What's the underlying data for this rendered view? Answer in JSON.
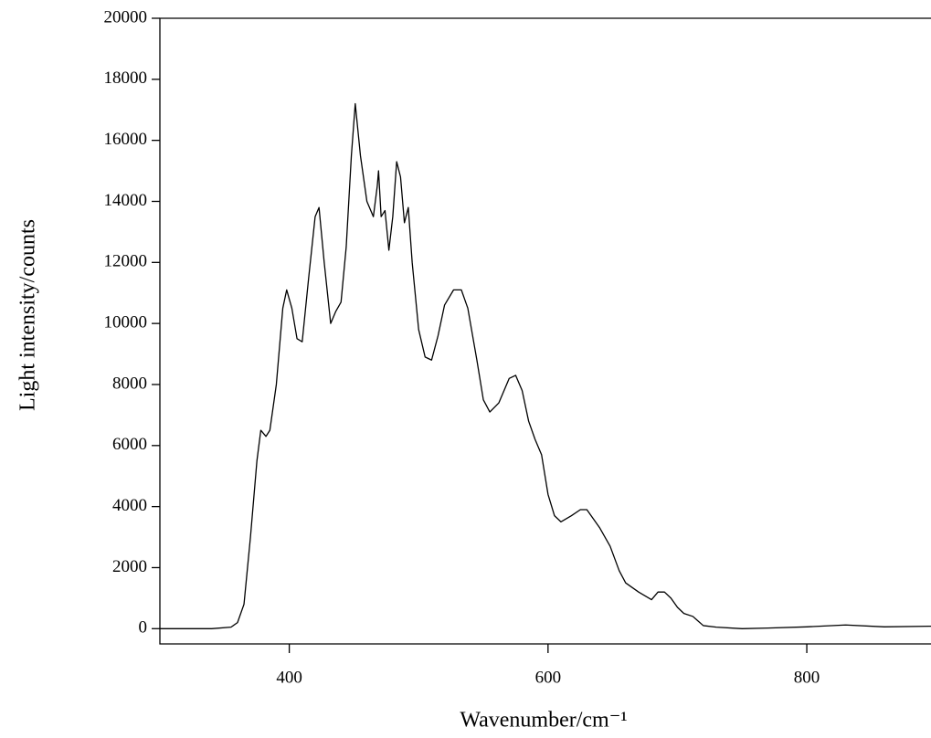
{
  "chart_data": {
    "type": "line",
    "x_label": "Wavenumber/cm⁻¹",
    "y_label": "Light intensity/counts",
    "x": [
      300,
      320,
      340,
      355,
      360,
      365,
      370,
      375,
      378,
      382,
      385,
      390,
      395,
      398,
      402,
      406,
      410,
      415,
      420,
      423,
      427,
      432,
      436,
      440,
      444,
      448,
      451,
      455,
      460,
      465,
      468,
      469,
      471,
      474,
      477,
      480,
      483,
      486,
      489,
      492,
      495,
      500,
      505,
      510,
      515,
      520,
      527,
      533,
      538,
      545,
      550,
      555,
      562,
      570,
      575,
      580,
      585,
      590,
      595,
      600,
      605,
      610,
      618,
      625,
      630,
      640,
      648,
      655,
      660,
      670,
      680,
      685,
      690,
      695,
      700,
      705,
      712,
      720,
      730,
      750,
      770,
      800,
      830,
      860,
      896
    ],
    "series": [
      {
        "color": "#000000",
        "values": [
          0,
          0,
          0,
          50,
          200,
          800,
          3000,
          5500,
          6500,
          6300,
          6500,
          8000,
          10500,
          11100,
          10500,
          9500,
          9400,
          11500,
          13500,
          13800,
          12000,
          10000,
          10400,
          10700,
          12500,
          15500,
          17200,
          15500,
          14000,
          13500,
          14500,
          15000,
          13500,
          13700,
          12400,
          13500,
          15300,
          14800,
          13300,
          13800,
          12000,
          9800,
          8900,
          8800,
          9600,
          10600,
          11100,
          11100,
          10500,
          8800,
          7500,
          7100,
          7400,
          8200,
          8300,
          7800,
          6800,
          6200,
          5700,
          4400,
          3700,
          3500,
          3700,
          3900,
          3900,
          3300,
          2700,
          1900,
          1500,
          1200,
          950,
          1200,
          1200,
          1000,
          700,
          500,
          400,
          100,
          50,
          0,
          20,
          60,
          120,
          60,
          80
        ]
      }
    ],
    "xlim": [
      300,
      896
    ],
    "xticks": [
      400,
      600,
      800
    ],
    "ylim": [
      -500,
      20000
    ],
    "yticks": [
      0,
      2000,
      4000,
      6000,
      8000,
      10000,
      12000,
      14000,
      16000,
      18000,
      20000
    ]
  }
}
